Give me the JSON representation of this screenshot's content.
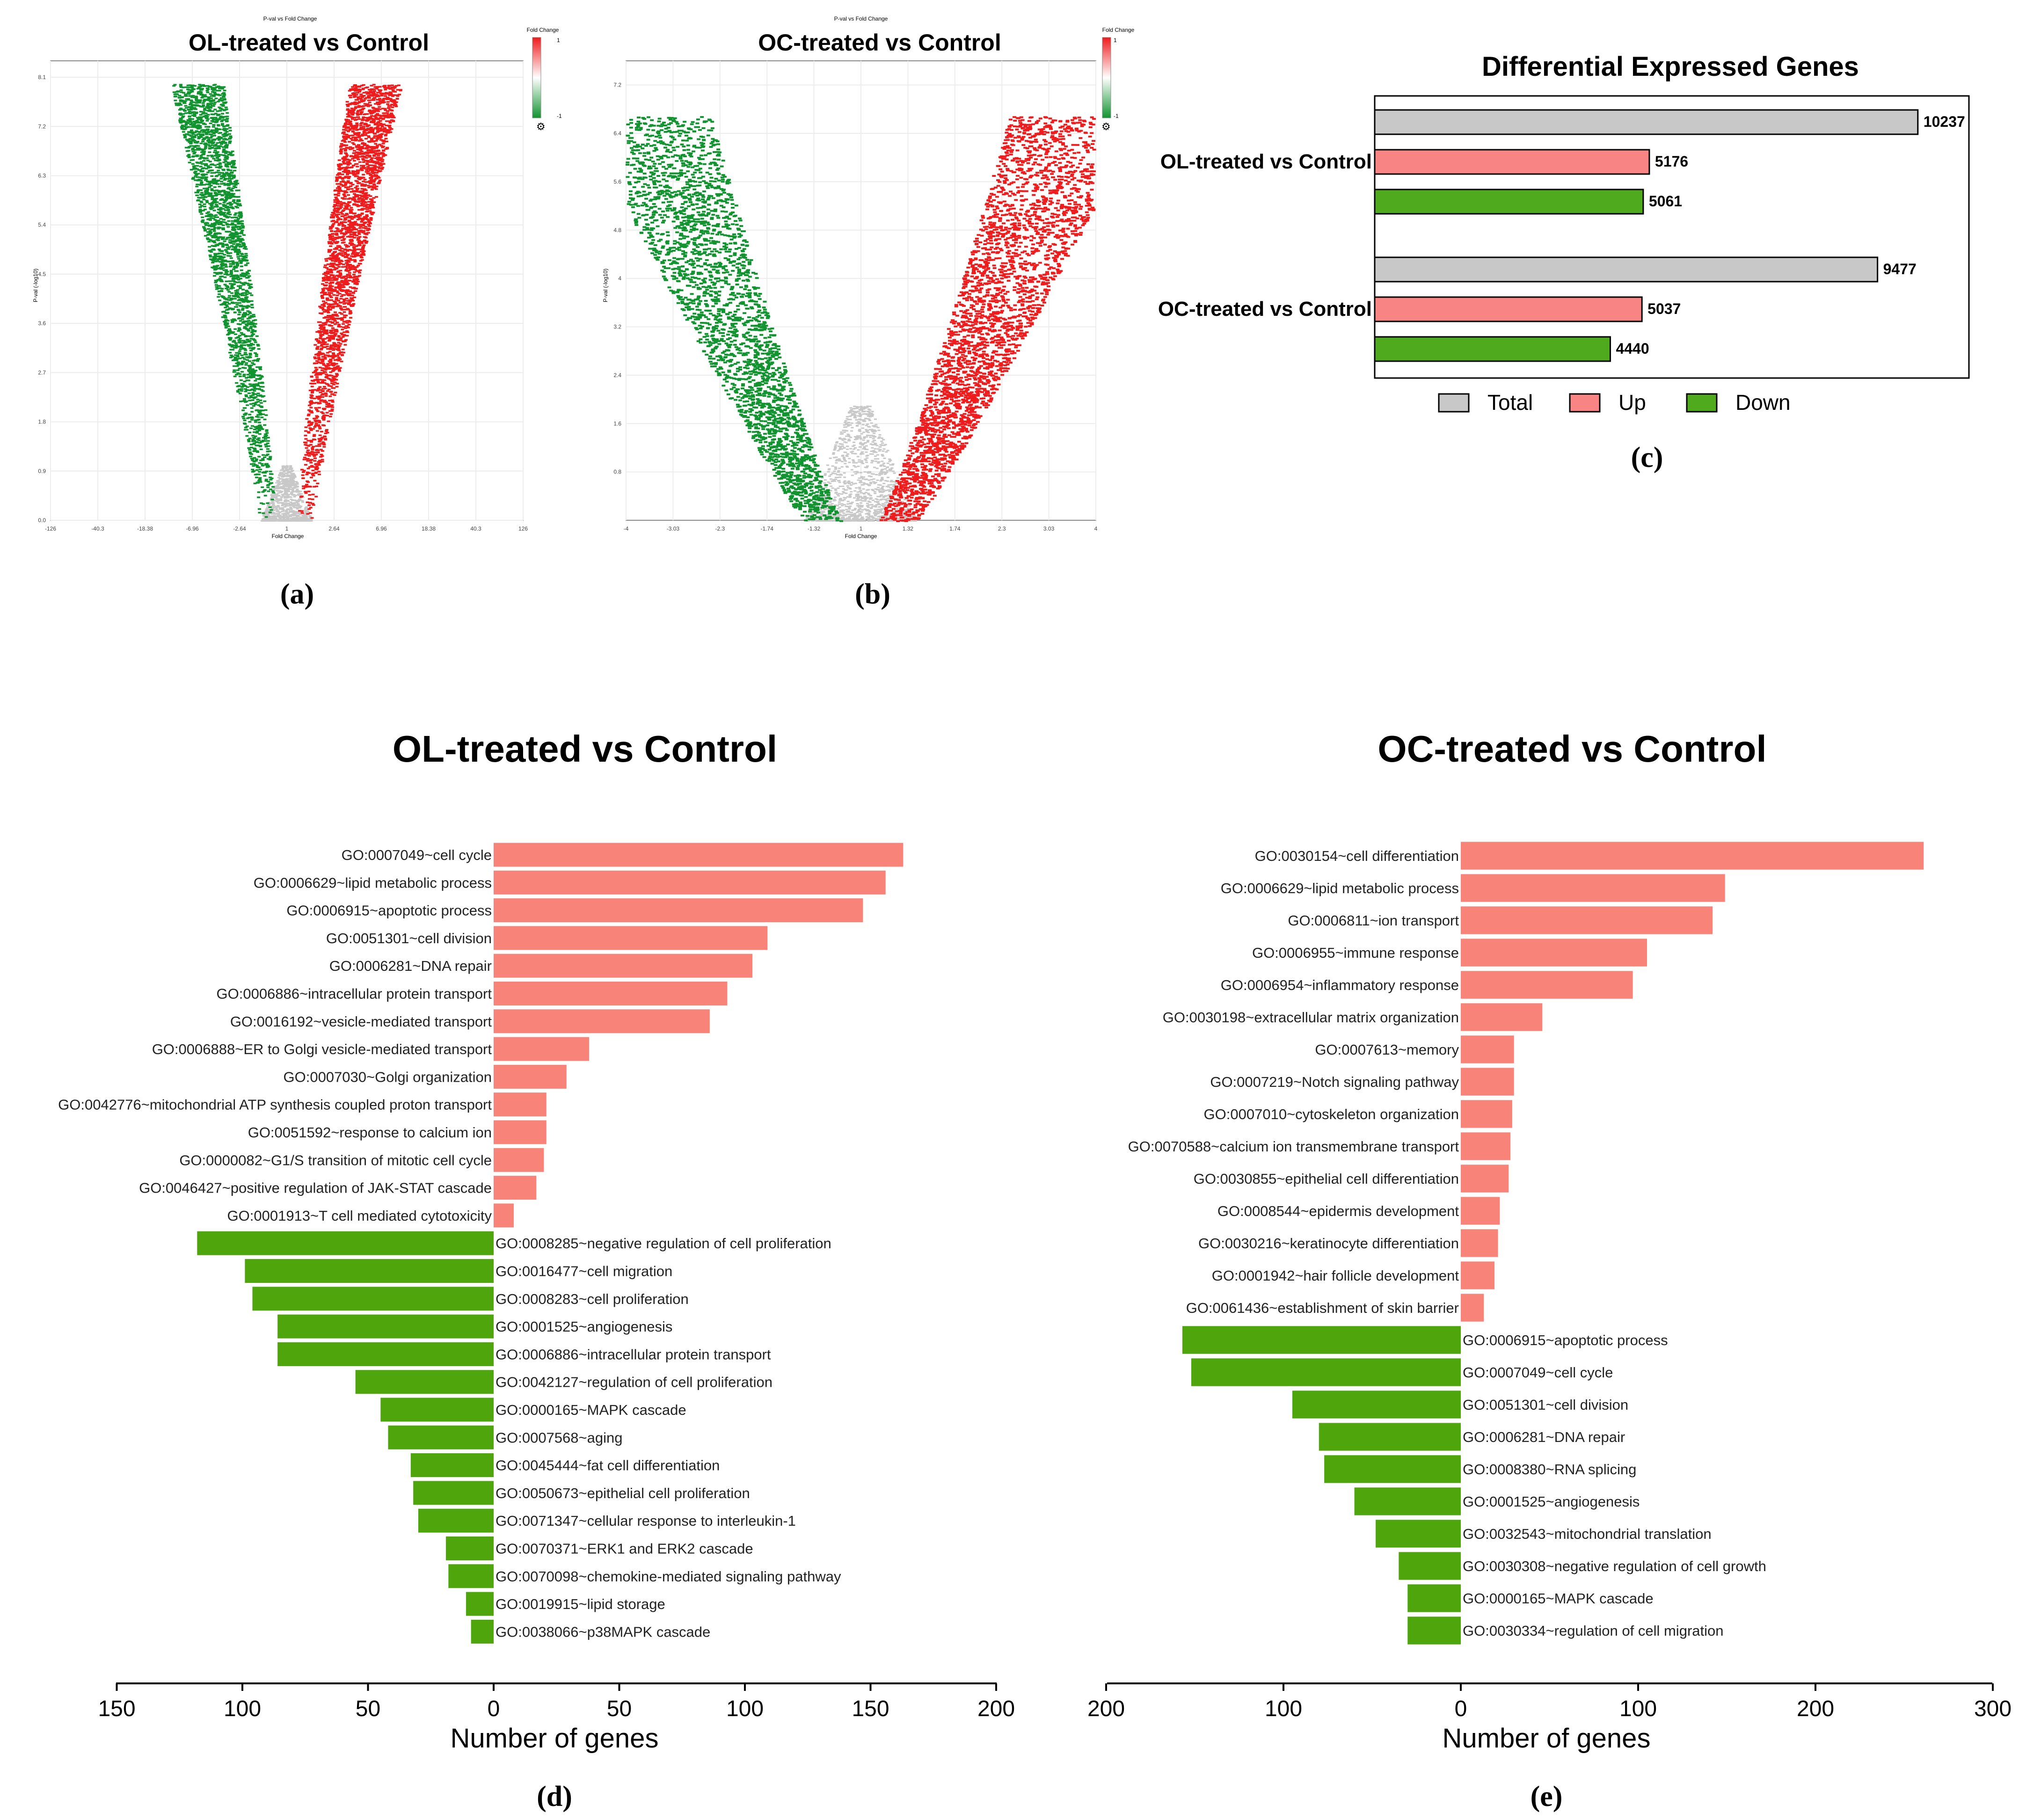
{
  "panel_labels": {
    "a": "(a)",
    "b": "(b)",
    "c": "(c)",
    "d": "(d)",
    "e": "(e)"
  },
  "colors": {
    "up": "#f88379",
    "down": "#4ea50c",
    "volcano_up": "#ee1c1c",
    "volcano_down": "#119430",
    "volcano_ns": "#c8c8c8",
    "total": "#c8c8c8",
    "c_up": "#f98484",
    "c_down": "#4faa1e"
  },
  "chart_data": [
    {
      "id": "a",
      "type": "scatter",
      "header": "P-val vs Fold Change",
      "title": "OL-treated vs Control",
      "xlabel": "Fold Change",
      "ylabel": "P-val (-log10)",
      "x_ticks": [
        "-126",
        "-40.3",
        "-18.38",
        "-6.96",
        "-2.64",
        "1",
        "2.64",
        "6.96",
        "18.38",
        "40.3",
        "126"
      ],
      "y_ticks": [
        "0.0",
        "0.9",
        "1.8",
        "2.7",
        "3.6",
        "4.5",
        "5.4",
        "6.3",
        "7.2",
        "8.1"
      ],
      "ylim": [
        0,
        8.4
      ],
      "legend_title": "Fold Change",
      "legend_max": "1",
      "legend_min": "-1"
    },
    {
      "id": "b",
      "type": "scatter",
      "header": "P-val vs Fold Change",
      "title": "OC-treated vs Control",
      "xlabel": "Fold Change",
      "ylabel": "P-val (-log10)",
      "x_ticks": [
        "-4",
        "-3.03",
        "-2.3",
        "-1.74",
        "-1.32",
        "1",
        "1.32",
        "1.74",
        "2.3",
        "3.03",
        "4"
      ],
      "y_ticks": [
        "0.8",
        "1.6",
        "2.4",
        "3.2",
        "4",
        "4.8",
        "5.6",
        "6.4",
        "7.2"
      ],
      "ylim": [
        0,
        7.6
      ],
      "legend_title": "Fold Change",
      "legend_max": "1",
      "legend_min": "-1"
    },
    {
      "id": "c",
      "type": "bar",
      "title": "Differential Expressed Genes",
      "groups": [
        {
          "label": "OL-treated vs Control",
          "total": 10237,
          "up": 5176,
          "down": 5061
        },
        {
          "label": "OC-treated vs Control",
          "total": 9477,
          "up": 5037,
          "down": 4440
        }
      ],
      "legend": [
        "Total",
        "Up",
        "Down"
      ],
      "legend_position": "bottom"
    },
    {
      "id": "d",
      "type": "bar",
      "orientation": "horizontal",
      "title": "OL-treated vs Control",
      "xlabel": "Number of genes",
      "xlim": [
        -150,
        200
      ],
      "x_ticks": [
        "150",
        "100",
        "50",
        "0",
        "50",
        "100",
        "150",
        "200"
      ],
      "up": [
        {
          "term": "GO:0007049~cell cycle",
          "value": 163
        },
        {
          "term": "GO:0006629~lipid metabolic process",
          "value": 156
        },
        {
          "term": "GO:0006915~apoptotic process",
          "value": 147
        },
        {
          "term": "GO:0051301~cell division",
          "value": 109
        },
        {
          "term": "GO:0006281~DNA repair",
          "value": 103
        },
        {
          "term": "GO:0006886~intracellular protein transport",
          "value": 93
        },
        {
          "term": "GO:0016192~vesicle-mediated transport",
          "value": 86
        },
        {
          "term": "GO:0006888~ER to Golgi vesicle-mediated transport",
          "value": 38
        },
        {
          "term": "GO:0007030~Golgi organization",
          "value": 29
        },
        {
          "term": "GO:0042776~mitochondrial ATP synthesis coupled proton transport",
          "value": 21
        },
        {
          "term": "GO:0051592~response to calcium ion",
          "value": 21
        },
        {
          "term": "GO:0000082~G1/S transition of mitotic cell cycle",
          "value": 20
        },
        {
          "term": "GO:0046427~positive regulation of JAK-STAT cascade",
          "value": 17
        },
        {
          "term": "GO:0001913~T cell mediated cytotoxicity",
          "value": 8
        }
      ],
      "down": [
        {
          "term": "GO:0008285~negative regulation of cell proliferation",
          "value": 118
        },
        {
          "term": "GO:0016477~cell migration",
          "value": 99
        },
        {
          "term": "GO:0008283~cell proliferation",
          "value": 96
        },
        {
          "term": "GO:0001525~angiogenesis",
          "value": 86
        },
        {
          "term": "GO:0006886~intracellular protein transport",
          "value": 86
        },
        {
          "term": "GO:0042127~regulation of cell proliferation",
          "value": 55
        },
        {
          "term": "GO:0000165~MAPK cascade",
          "value": 45
        },
        {
          "term": "GO:0007568~aging",
          "value": 42
        },
        {
          "term": "GO:0045444~fat cell differentiation",
          "value": 33
        },
        {
          "term": "GO:0050673~epithelial cell proliferation",
          "value": 32
        },
        {
          "term": "GO:0071347~cellular response to interleukin-1",
          "value": 30
        },
        {
          "term": "GO:0070371~ERK1 and ERK2 cascade",
          "value": 19
        },
        {
          "term": "GO:0070098~chemokine-mediated signaling pathway",
          "value": 18
        },
        {
          "term": "GO:0019915~lipid storage",
          "value": 11
        },
        {
          "term": "GO:0038066~p38MAPK cascade",
          "value": 9
        }
      ]
    },
    {
      "id": "e",
      "type": "bar",
      "orientation": "horizontal",
      "title": "OC-treated vs Control",
      "xlabel": "Number of genes",
      "xlim": [
        -200,
        300
      ],
      "x_ticks": [
        "200",
        "100",
        "0",
        "100",
        "200",
        "300"
      ],
      "up": [
        {
          "term": "GO:0030154~cell differentiation",
          "value": 261
        },
        {
          "term": "GO:0006629~lipid metabolic process",
          "value": 149
        },
        {
          "term": "GO:0006811~ion transport",
          "value": 142
        },
        {
          "term": "GO:0006955~immune response",
          "value": 105
        },
        {
          "term": "GO:0006954~inflammatory response",
          "value": 97
        },
        {
          "term": "GO:0030198~extracellular matrix organization",
          "value": 46
        },
        {
          "term": "GO:0007613~memory",
          "value": 30
        },
        {
          "term": "GO:0007219~Notch signaling pathway",
          "value": 30
        },
        {
          "term": "GO:0007010~cytoskeleton organization",
          "value": 29
        },
        {
          "term": "GO:0070588~calcium ion transmembrane transport",
          "value": 28
        },
        {
          "term": "GO:0030855~epithelial cell differentiation",
          "value": 27
        },
        {
          "term": "GO:0008544~epidermis development",
          "value": 22
        },
        {
          "term": "GO:0030216~keratinocyte differentiation",
          "value": 21
        },
        {
          "term": "GO:0001942~hair follicle development",
          "value": 19
        },
        {
          "term": "GO:0061436~establishment of skin barrier",
          "value": 13
        }
      ],
      "down": [
        {
          "term": "GO:0006915~apoptotic process",
          "value": 157
        },
        {
          "term": "GO:0007049~cell cycle",
          "value": 152
        },
        {
          "term": "GO:0051301~cell division",
          "value": 95
        },
        {
          "term": "GO:0006281~DNA repair",
          "value": 80
        },
        {
          "term": "GO:0008380~RNA splicing",
          "value": 77
        },
        {
          "term": "GO:0001525~angiogenesis",
          "value": 60
        },
        {
          "term": "GO:0032543~mitochondrial translation",
          "value": 48
        },
        {
          "term": "GO:0030308~negative regulation of cell growth",
          "value": 35
        },
        {
          "term": "GO:0000165~MAPK cascade",
          "value": 30
        },
        {
          "term": "GO:0030334~regulation of cell migration",
          "value": 30
        }
      ]
    }
  ]
}
